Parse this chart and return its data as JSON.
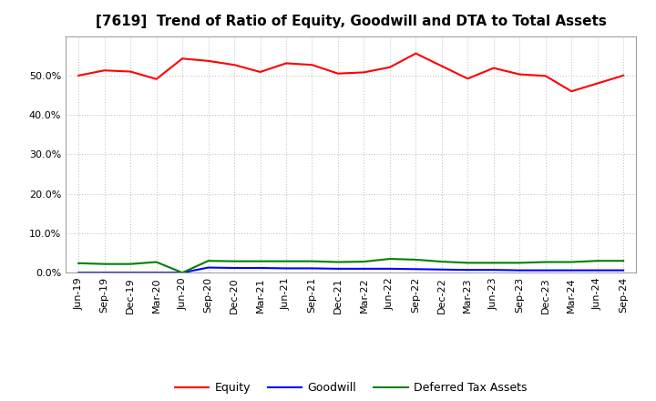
{
  "title": "[7619]  Trend of Ratio of Equity, Goodwill and DTA to Total Assets",
  "x_labels": [
    "Jun-19",
    "Sep-19",
    "Dec-19",
    "Mar-20",
    "Jun-20",
    "Sep-20",
    "Dec-20",
    "Mar-21",
    "Jun-21",
    "Sep-21",
    "Dec-21",
    "Mar-22",
    "Jun-22",
    "Sep-22",
    "Dec-22",
    "Mar-23",
    "Jun-23",
    "Sep-23",
    "Dec-23",
    "Mar-24",
    "Jun-24",
    "Sep-24"
  ],
  "equity": [
    0.5,
    0.513,
    0.51,
    0.491,
    0.543,
    0.537,
    0.527,
    0.509,
    0.531,
    0.527,
    0.505,
    0.508,
    0.521,
    0.556,
    0.524,
    0.492,
    0.519,
    0.503,
    0.499,
    0.46,
    0.48,
    0.5
  ],
  "goodwill": [
    0.0,
    0.0,
    0.0,
    0.0,
    0.0,
    0.013,
    0.012,
    0.012,
    0.011,
    0.011,
    0.01,
    0.01,
    0.01,
    0.009,
    0.008,
    0.007,
    0.007,
    0.006,
    0.006,
    0.006,
    0.006,
    0.006
  ],
  "dta": [
    0.024,
    0.022,
    0.022,
    0.027,
    0.0,
    0.03,
    0.029,
    0.029,
    0.029,
    0.029,
    0.027,
    0.028,
    0.035,
    0.033,
    0.028,
    0.025,
    0.025,
    0.025,
    0.027,
    0.027,
    0.03,
    0.03
  ],
  "equity_color": "#FF0000",
  "goodwill_color": "#0000FF",
  "dta_color": "#008000",
  "ylim": [
    0.0,
    0.6
  ],
  "yticks": [
    0.0,
    0.1,
    0.2,
    0.3,
    0.4,
    0.5
  ],
  "background_color": "#FFFFFF",
  "plot_bg_color": "#FFFFFF",
  "grid_color": "#BBBBBB",
  "title_fontsize": 11,
  "tick_fontsize": 8,
  "legend_fontsize": 9,
  "linewidth": 1.5
}
